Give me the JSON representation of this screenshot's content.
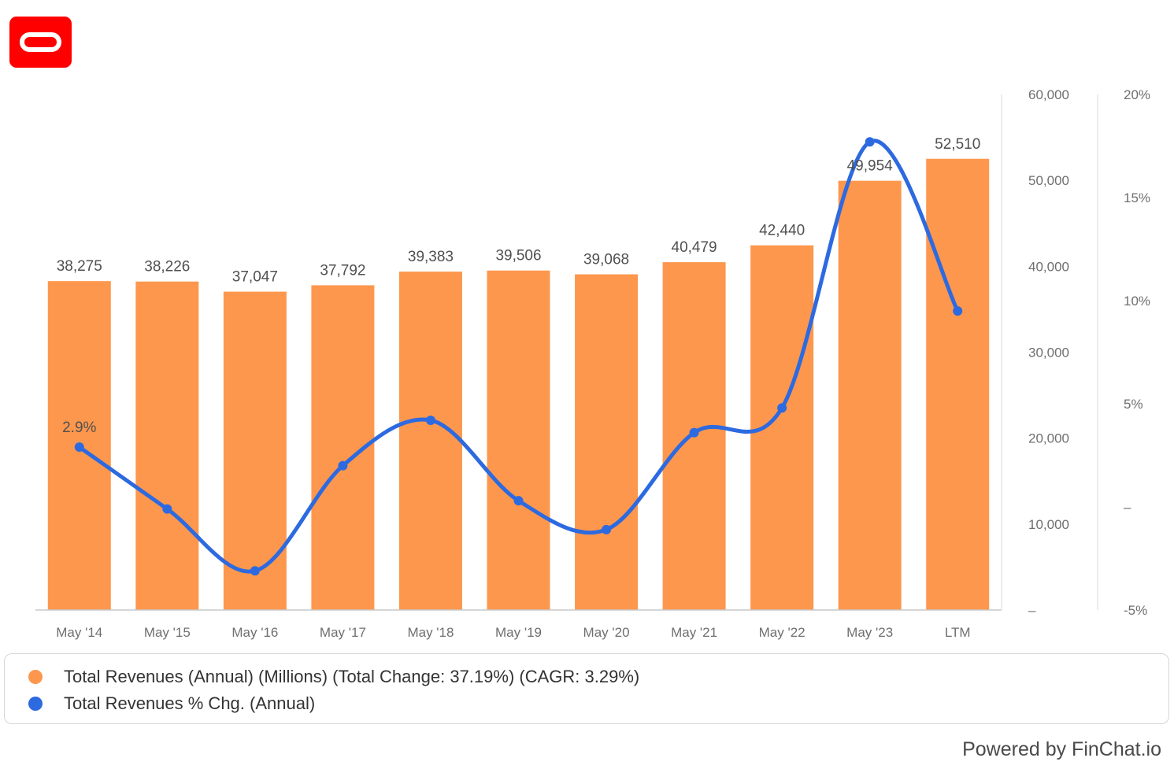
{
  "brand": {
    "logo_color": "#ff0000",
    "logo_name": "oracle-logo"
  },
  "chart_data": {
    "type": "bar",
    "categories": [
      "May '14",
      "May '15",
      "May '16",
      "May '17",
      "May '18",
      "May '19",
      "May '20",
      "May '21",
      "May '22",
      "May '23",
      "LTM"
    ],
    "series": [
      {
        "name": "Total Revenues (Annual) (Millions) (Total Change: 37.19%) (CAGR: 3.29%)",
        "type": "bar",
        "axis": "left",
        "color": "#fd974d",
        "values": [
          38275,
          38226,
          37047,
          37792,
          39383,
          39506,
          39068,
          40479,
          42440,
          49954,
          52510
        ],
        "labels": [
          "38,275",
          "38,226",
          "37,047",
          "37,792",
          "39,383",
          "39,506",
          "39,068",
          "40,479",
          "42,440",
          "49,954",
          "52,510"
        ]
      },
      {
        "name": "Total Revenues % Chg. (Annual)",
        "type": "line",
        "axis": "right",
        "color": "#2d6ae0",
        "values": [
          2.9,
          -0.1,
          -3.1,
          2.0,
          4.2,
          0.3,
          -1.1,
          3.6,
          4.8,
          17.7,
          9.5
        ],
        "labels": [
          "2.9%",
          "",
          "",
          "",
          "",
          "",
          "",
          "",
          "",
          "",
          ""
        ]
      }
    ],
    "y_left": {
      "range": [
        0,
        60000
      ],
      "ticks": [
        0,
        10000,
        20000,
        30000,
        40000,
        50000,
        60000
      ],
      "tick_labels": [
        "–",
        "10,000",
        "20,000",
        "30,000",
        "40,000",
        "50,000",
        "60,000"
      ]
    },
    "y_right": {
      "range": [
        -5,
        20
      ],
      "ticks": [
        -5,
        0,
        5,
        10,
        15,
        20
      ],
      "tick_labels": [
        "-5%",
        "–",
        "5%",
        "10%",
        "15%",
        "20%"
      ]
    },
    "grid": false,
    "legend_position": "bottom"
  },
  "footer": {
    "powered_by": "Powered by FinChat.io"
  }
}
